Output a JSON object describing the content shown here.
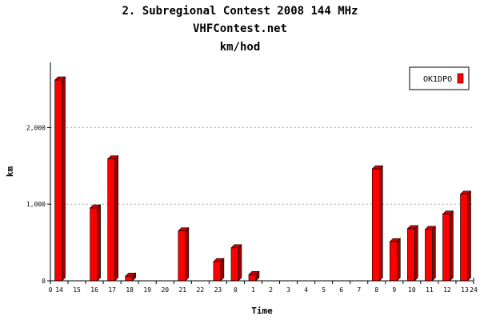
{
  "header": {
    "title": "2. Subregional Contest 2008 144 MHz",
    "subtitle": "VHFContest.net",
    "unit": "km/hod"
  },
  "colors": {
    "bar_front": "#ff0000",
    "bar_side": "#9a0000",
    "bar_top": "#d00000",
    "bar_outline": "#000000",
    "grid": "#aaaaaa",
    "axis": "#000000"
  },
  "chart_data": {
    "type": "bar",
    "title": "2. Subregional Contest 2008 144 MHz",
    "subtitle": "VHFContest.net",
    "unit_label": "km/hod",
    "xlabel": "Time",
    "ylabel": "km",
    "ylim": [
      0,
      2850
    ],
    "yticks": [
      0,
      1000,
      2000
    ],
    "ytick_labels": [
      "0",
      "1,000",
      "2,000"
    ],
    "x_start_label": "0",
    "x_end_label": "24",
    "categories": [
      "14",
      "15",
      "16",
      "17",
      "18",
      "19",
      "20",
      "21",
      "22",
      "23",
      "0",
      "1",
      "2",
      "3",
      "4",
      "5",
      "6",
      "7",
      "8",
      "9",
      "10",
      "11",
      "12",
      "13"
    ],
    "series": [
      {
        "name": "OK1DPO",
        "values": [
          2620,
          0,
          950,
          1590,
          60,
          0,
          0,
          650,
          0,
          250,
          430,
          80,
          0,
          0,
          0,
          0,
          0,
          0,
          1460,
          510,
          680,
          670,
          870,
          1130
        ]
      }
    ],
    "grid": true,
    "legend_position": "top-right"
  }
}
